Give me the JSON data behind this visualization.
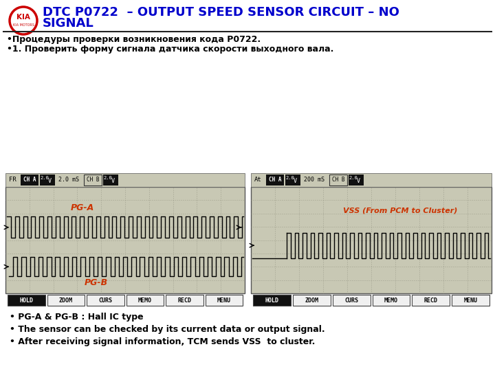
{
  "title_line1": "DTC P0722  – OUTPUT SPEED SENSOR CIRCUIT – NO",
  "title_line2": "SIGNAL",
  "title_color": "#0000CC",
  "kia_logo_color": "#CC0000",
  "bullet1": "•Процедуры проверки возникновения кода P0722.",
  "bullet2": "•1. Проверить форму сигнала датчика скорости выходного вала.",
  "scope1_ms": "2.0 mS",
  "scope2_ms": "200 mS",
  "scope1_label_pga": "PG-A",
  "scope1_label_pgb": "PG-B",
  "scope2_label_vss": "VSS (From PCM to Cluster)",
  "btn_labels": [
    "HOLD",
    "ZOOM",
    "CURS",
    "MEMO",
    "RECD",
    "MENU"
  ],
  "footer1": "• PG-A & PG-B : Hall IC type",
  "footer2": "• The sensor can be checked by its current data or output signal.",
  "footer3": "• After receiving signal information, TCM sends VSS  to cluster.",
  "scope_bg": "#c8c8b4",
  "scope_grid_color": "#909080",
  "label_color_red": "#CC3300",
  "wave_color": "#000000"
}
